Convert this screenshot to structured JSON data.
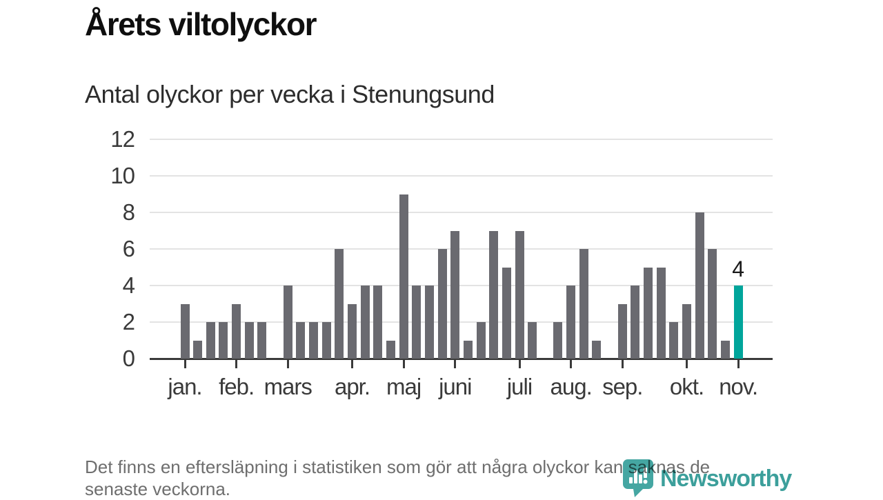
{
  "chart_data": {
    "type": "bar",
    "title": "Årets viltolyckor",
    "subtitle": "Antal olyckor per vecka i Stenungsund",
    "x_unit": "vecka",
    "values": [
      3,
      1,
      2,
      2,
      3,
      2,
      2,
      0,
      4,
      2,
      2,
      2,
      6,
      3,
      4,
      4,
      1,
      9,
      4,
      4,
      6,
      7,
      1,
      2,
      7,
      5,
      7,
      2,
      0,
      2,
      4,
      6,
      1,
      0,
      3,
      4,
      5,
      5,
      2,
      3,
      8,
      6,
      1,
      4
    ],
    "y_ticks": [
      0,
      2,
      4,
      6,
      8,
      10,
      12
    ],
    "ylim": [
      0,
      12
    ],
    "grid": "horizontal",
    "month_ticks": [
      {
        "label": "jan.",
        "week_index": 0
      },
      {
        "label": "feb.",
        "week_index": 4
      },
      {
        "label": "mars",
        "week_index": 8
      },
      {
        "label": "apr.",
        "week_index": 13
      },
      {
        "label": "maj",
        "week_index": 17
      },
      {
        "label": "juni",
        "week_index": 21
      },
      {
        "label": "juli",
        "week_index": 26
      },
      {
        "label": "aug.",
        "week_index": 30
      },
      {
        "label": "sep.",
        "week_index": 34
      },
      {
        "label": "okt.",
        "week_index": 39
      },
      {
        "label": "nov.",
        "week_index": 43
      }
    ],
    "highlight": {
      "index": 43,
      "label": "4"
    },
    "colors": {
      "bar": "#6a6a70",
      "highlight_bar": "#00a59b",
      "axis": "#3a3a3a",
      "gridline": "#e3e3e3"
    }
  },
  "footer": {
    "note": "Det finns en eftersläpning i statistiken som gör att några olyckor kan saknas de\nsenaste veckorna.",
    "brand": "Newsworthy",
    "brand_color": "#3c9f9b",
    "pin_color": "#45a6a2"
  }
}
